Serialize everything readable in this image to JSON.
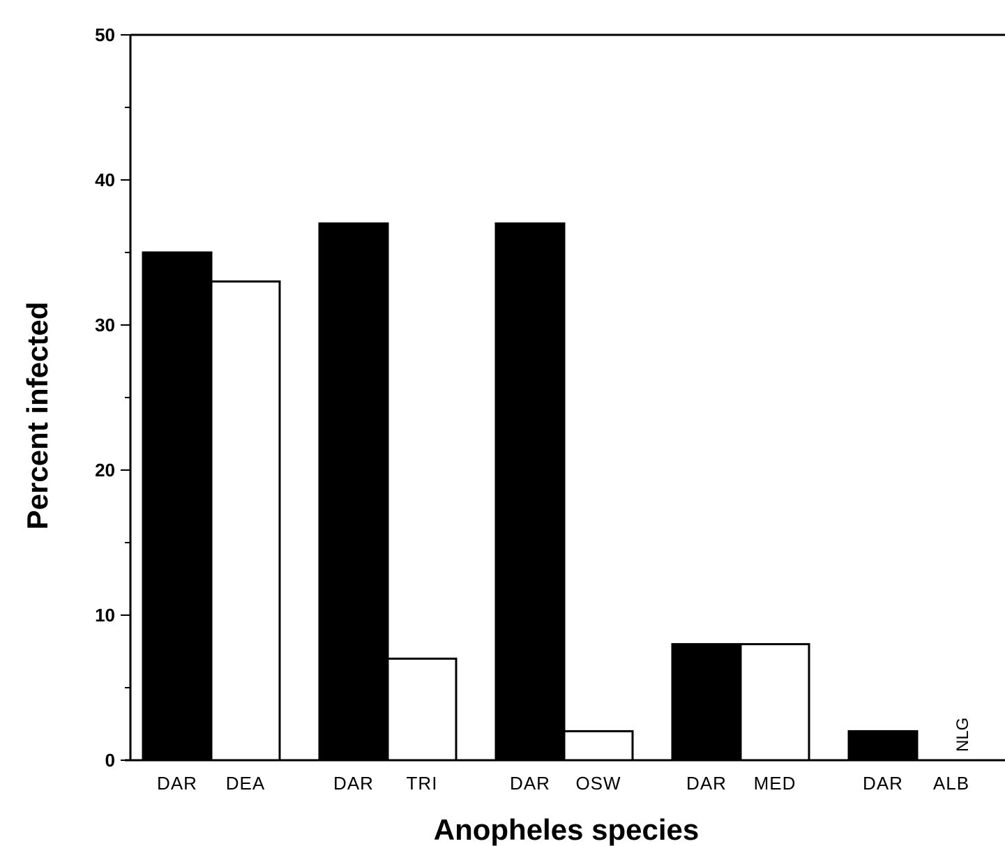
{
  "chart_data": {
    "type": "bar",
    "xlabel": "Anopheles species",
    "ylabel": "Percent infected",
    "ylim": [
      0,
      50
    ],
    "yticks": [
      "0",
      "10",
      "20",
      "30",
      "40",
      "50"
    ],
    "grid": false,
    "groups": [
      {
        "bars": [
          {
            "label": "DAR",
            "value": 35,
            "fill": "#000000"
          },
          {
            "label": "DEA",
            "value": 33,
            "fill": "#ffffff"
          }
        ]
      },
      {
        "bars": [
          {
            "label": "DAR",
            "value": 37,
            "fill": "#000000"
          },
          {
            "label": "TRI",
            "value": 7,
            "fill": "#ffffff"
          }
        ]
      },
      {
        "bars": [
          {
            "label": "DAR",
            "value": 37,
            "fill": "#000000"
          },
          {
            "label": "OSW",
            "value": 2,
            "fill": "#ffffff"
          }
        ]
      },
      {
        "bars": [
          {
            "label": "DAR",
            "value": 8,
            "fill": "#000000"
          },
          {
            "label": "MED",
            "value": 8,
            "fill": "#ffffff"
          }
        ]
      },
      {
        "bars": [
          {
            "label": "DAR",
            "value": 2,
            "fill": "#000000"
          },
          {
            "label": "ALB",
            "value": 0,
            "fill": "#ffffff",
            "annotation": "NLG"
          }
        ]
      }
    ]
  }
}
